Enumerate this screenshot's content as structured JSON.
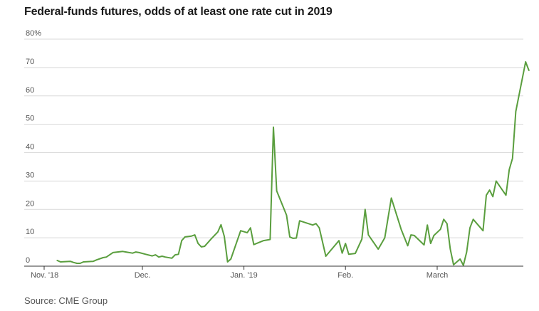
{
  "title": "Federal-funds futures, odds of at least one rate cut in 2019",
  "source": "Source: CME Group",
  "chart_data": {
    "type": "line",
    "title": "Federal-funds futures, odds of at least one rate cut in 2019",
    "xlabel": "",
    "ylabel": "",
    "ylim": [
      0,
      80
    ],
    "yticks": [
      0,
      10,
      20,
      30,
      40,
      50,
      60,
      70,
      80
    ],
    "ytick_labels": [
      "0",
      "10",
      "20",
      "30",
      "40",
      "50",
      "60",
      "70",
      "80%"
    ],
    "xlim": [
      "2018-10-31",
      "2019-03-25"
    ],
    "xticks": [
      {
        "date": "2018-11-01",
        "label": "Nov. '18"
      },
      {
        "date": "2018-12-01",
        "label": "Dec."
      },
      {
        "date": "2019-01-01",
        "label": "Jan. '19"
      },
      {
        "date": "2019-02-01",
        "label": "Feb."
      },
      {
        "date": "2019-03-01",
        "label": "March"
      }
    ],
    "grid": true,
    "line_color": "#5a9e3e",
    "series": [
      {
        "points": [
          [
            "2018-11-05",
            2.0
          ],
          [
            "2018-11-06",
            1.5
          ],
          [
            "2018-11-09",
            1.7
          ],
          [
            "2018-11-10",
            1.3
          ],
          [
            "2018-11-11",
            1.0
          ],
          [
            "2018-11-12",
            1.0
          ],
          [
            "2018-11-13",
            1.5
          ],
          [
            "2018-11-16",
            1.7
          ],
          [
            "2018-11-17",
            2.2
          ],
          [
            "2018-11-19",
            3.0
          ],
          [
            "2018-11-20",
            3.2
          ],
          [
            "2018-11-22",
            4.8
          ],
          [
            "2018-11-25",
            5.2
          ],
          [
            "2018-11-26",
            5.0
          ],
          [
            "2018-11-28",
            4.6
          ],
          [
            "2018-11-29",
            5.0
          ],
          [
            "2018-11-30",
            4.8
          ],
          [
            "2018-12-02",
            4.2
          ],
          [
            "2018-12-04",
            3.6
          ],
          [
            "2018-12-05",
            4.0
          ],
          [
            "2018-12-06",
            3.2
          ],
          [
            "2018-12-07",
            3.5
          ],
          [
            "2018-12-08",
            3.2
          ],
          [
            "2018-12-10",
            2.8
          ],
          [
            "2018-12-11",
            4.0
          ],
          [
            "2018-12-12",
            4.2
          ],
          [
            "2018-12-13",
            9.0
          ],
          [
            "2018-12-14",
            10.3
          ],
          [
            "2018-12-16",
            10.6
          ],
          [
            "2018-12-17",
            11.0
          ],
          [
            "2018-12-18",
            8.0
          ],
          [
            "2018-12-19",
            6.8
          ],
          [
            "2018-12-20",
            7.0
          ],
          [
            "2018-12-22",
            9.6
          ],
          [
            "2018-12-24",
            12.0
          ],
          [
            "2018-12-25",
            14.6
          ],
          [
            "2018-12-26",
            10.5
          ],
          [
            "2018-12-27",
            1.5
          ],
          [
            "2018-12-28",
            2.5
          ],
          [
            "2018-12-31",
            12.5
          ],
          [
            "2019-01-02",
            11.8
          ],
          [
            "2019-01-03",
            13.5
          ],
          [
            "2019-01-04",
            7.6
          ],
          [
            "2019-01-07",
            9.0
          ],
          [
            "2019-01-09",
            9.4
          ],
          [
            "2019-01-10",
            49.0
          ],
          [
            "2019-01-11",
            26.5
          ],
          [
            "2019-01-14",
            18.0
          ],
          [
            "2019-01-15",
            10.3
          ],
          [
            "2019-01-16",
            9.8
          ],
          [
            "2019-01-17",
            9.9
          ],
          [
            "2019-01-18",
            16.0
          ],
          [
            "2019-01-22",
            14.5
          ],
          [
            "2019-01-23",
            15.0
          ],
          [
            "2019-01-24",
            13.5
          ],
          [
            "2019-01-26",
            3.5
          ],
          [
            "2019-01-30",
            9.0
          ],
          [
            "2019-01-31",
            4.6
          ],
          [
            "2019-02-01",
            8.0
          ],
          [
            "2019-02-02",
            4.2
          ],
          [
            "2019-02-04",
            4.5
          ],
          [
            "2019-02-06",
            9.5
          ],
          [
            "2019-02-07",
            20.0
          ],
          [
            "2019-02-08",
            11.0
          ],
          [
            "2019-02-11",
            6.0
          ],
          [
            "2019-02-13",
            10.0
          ],
          [
            "2019-02-15",
            24.0
          ],
          [
            "2019-02-18",
            13.0
          ],
          [
            "2019-02-20",
            7.2
          ],
          [
            "2019-02-21",
            11.0
          ],
          [
            "2019-02-22",
            10.8
          ],
          [
            "2019-02-25",
            7.5
          ],
          [
            "2019-02-26",
            14.5
          ],
          [
            "2019-02-27",
            8.0
          ],
          [
            "2019-02-28",
            10.8
          ],
          [
            "2019-03-02",
            13.0
          ],
          [
            "2019-03-03",
            16.5
          ],
          [
            "2019-03-04",
            15.0
          ],
          [
            "2019-03-05",
            6.0
          ],
          [
            "2019-03-06",
            0.5
          ],
          [
            "2019-03-08",
            2.5
          ],
          [
            "2019-03-09",
            0.3
          ],
          [
            "2019-03-10",
            5.0
          ],
          [
            "2019-03-11",
            13.5
          ],
          [
            "2019-03-12",
            16.5
          ],
          [
            "2019-03-15",
            12.5
          ],
          [
            "2019-03-16",
            25.0
          ],
          [
            "2019-03-17",
            26.8
          ],
          [
            "2019-03-18",
            24.5
          ],
          [
            "2019-03-19",
            30.0
          ],
          [
            "2019-03-22",
            25.0
          ],
          [
            "2019-03-23",
            34.0
          ],
          [
            "2019-03-24",
            38.0
          ],
          [
            "2019-03-25",
            54.5
          ],
          [
            "2019-03-28",
            72.0
          ],
          [
            "2019-03-29",
            69.0
          ]
        ]
      }
    ]
  }
}
